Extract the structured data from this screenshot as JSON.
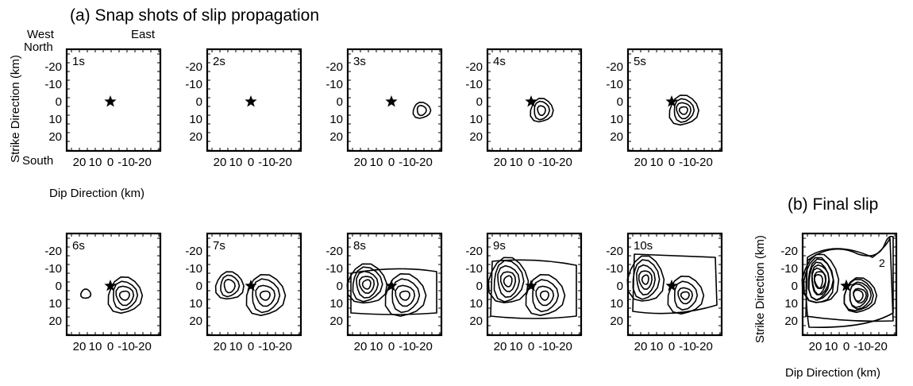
{
  "figure": {
    "title_a": "(a) Snap shots of slip propagation",
    "title_b": "(b) Final slip",
    "orientation": {
      "north": "North",
      "south": "South",
      "west": "West",
      "east": "East"
    },
    "ylabel": "Strike Direction (km)",
    "xlabel": "Dip Direction (km)",
    "yticks": [
      "-20",
      "-10",
      "0",
      "10",
      "20"
    ],
    "xticks": [
      "20",
      "10",
      "0",
      "-10",
      "-20"
    ],
    "contour_label": "2"
  },
  "panels": [
    {
      "label": "1s"
    },
    {
      "label": "2s"
    },
    {
      "label": "3s"
    },
    {
      "label": "4s"
    },
    {
      "label": "5s"
    },
    {
      "label": "6s"
    },
    {
      "label": "7s"
    },
    {
      "label": "8s"
    },
    {
      "label": "9s"
    },
    {
      "label": "10s"
    },
    {
      "label": ""
    }
  ]
}
